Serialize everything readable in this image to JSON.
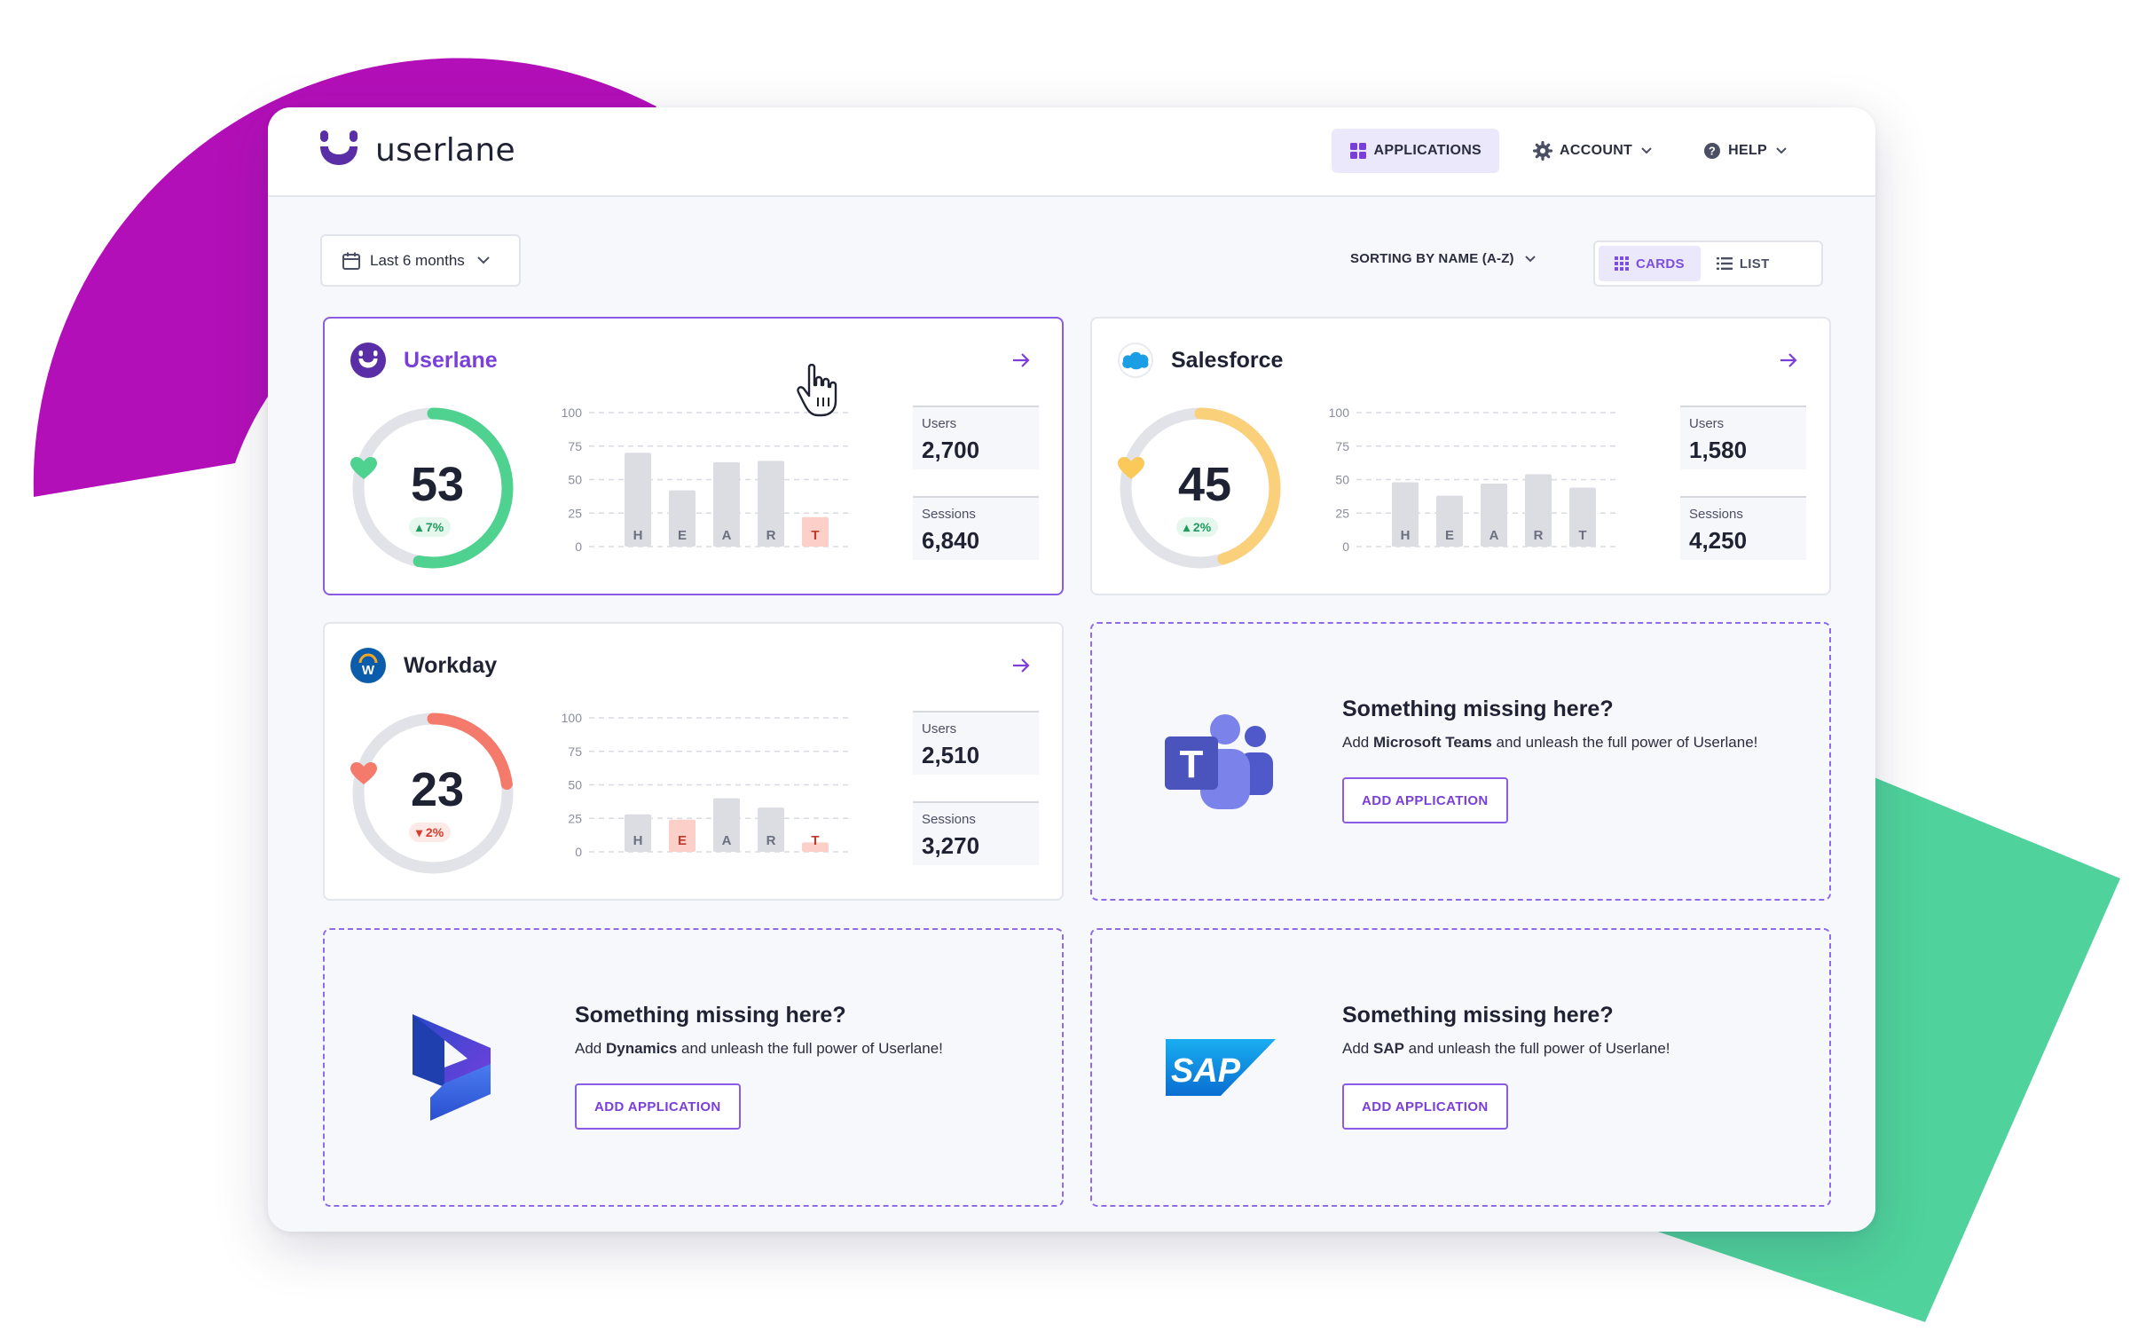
{
  "header": {
    "brand": "userlane",
    "nav": [
      {
        "label": "APPLICATIONS",
        "icon": "grid-icon",
        "active": true
      },
      {
        "label": "ACCOUNT",
        "icon": "gear-icon",
        "active": false
      },
      {
        "label": "HELP",
        "icon": "question-icon",
        "active": false
      }
    ]
  },
  "toolbar": {
    "date_range": "Last 6 months",
    "sorting": "SORTING BY NAME (A-Z)",
    "view_cards": "CARDS",
    "view_list": "LIST",
    "active_view": "CARDS"
  },
  "apps": [
    {
      "name": "Userlane",
      "score": "53",
      "delta": "7%",
      "trend": "up",
      "gauge_fraction": 0.53,
      "gauge_color": "#4fd28f",
      "users_label": "Users",
      "users": "2,700",
      "sessions_label": "Sessions",
      "sessions": "6,840",
      "chart": {
        "yticks": [
          "100",
          "75",
          "50",
          "25",
          "0"
        ],
        "letters": [
          "H",
          "E",
          "A",
          "R",
          "T"
        ],
        "values": [
          70,
          42,
          63,
          64,
          22
        ],
        "highlight": [
          false,
          false,
          false,
          false,
          true
        ]
      }
    },
    {
      "name": "Salesforce",
      "score": "45",
      "delta": "2%",
      "trend": "up",
      "gauge_fraction": 0.45,
      "gauge_color": "#fbd07a",
      "users_label": "Users",
      "users": "1,580",
      "sessions_label": "Sessions",
      "sessions": "4,250",
      "chart": {
        "yticks": [
          "100",
          "75",
          "50",
          "25",
          "0"
        ],
        "letters": [
          "H",
          "E",
          "A",
          "R",
          "T"
        ],
        "values": [
          48,
          38,
          47,
          54,
          44
        ],
        "highlight": [
          false,
          false,
          false,
          false,
          false
        ]
      }
    },
    {
      "name": "Workday",
      "score": "23",
      "delta": "2%",
      "trend": "down",
      "gauge_fraction": 0.23,
      "gauge_color": "#f47b6b",
      "users_label": "Users",
      "users": "2,510",
      "sessions_label": "Sessions",
      "sessions": "3,270",
      "chart": {
        "yticks": [
          "100",
          "75",
          "50",
          "25",
          "0"
        ],
        "letters": [
          "H",
          "E",
          "A",
          "R",
          "T"
        ],
        "values": [
          28,
          24,
          40,
          33,
          7
        ],
        "highlight": [
          false,
          true,
          false,
          false,
          true
        ]
      }
    }
  ],
  "missing": [
    {
      "title": "Something missing here?",
      "pre": "Add ",
      "app": "Microsoft Teams",
      "post": " and unleash the full power of Userlane!",
      "button": "ADD APPLICATION",
      "logo": "microsoft-teams-logo"
    },
    {
      "title": "Something missing here?",
      "pre": "Add ",
      "app": "Dynamics",
      "post": " and unleash the full power of Userlane!",
      "button": "ADD APPLICATION",
      "logo": "dynamics-logo"
    },
    {
      "title": "Something missing here?",
      "pre": "Add ",
      "app": "SAP",
      "post": " and unleash the full power of Userlane!",
      "button": "ADD APPLICATION",
      "logo": "sap-logo"
    }
  ],
  "colors": {
    "accent": "#7a3fd9",
    "bar": "#dcdde3",
    "bar_highlight": "#fcd0c8",
    "decor_magenta": "#b30fb8",
    "decor_green": "#4fd29b"
  }
}
